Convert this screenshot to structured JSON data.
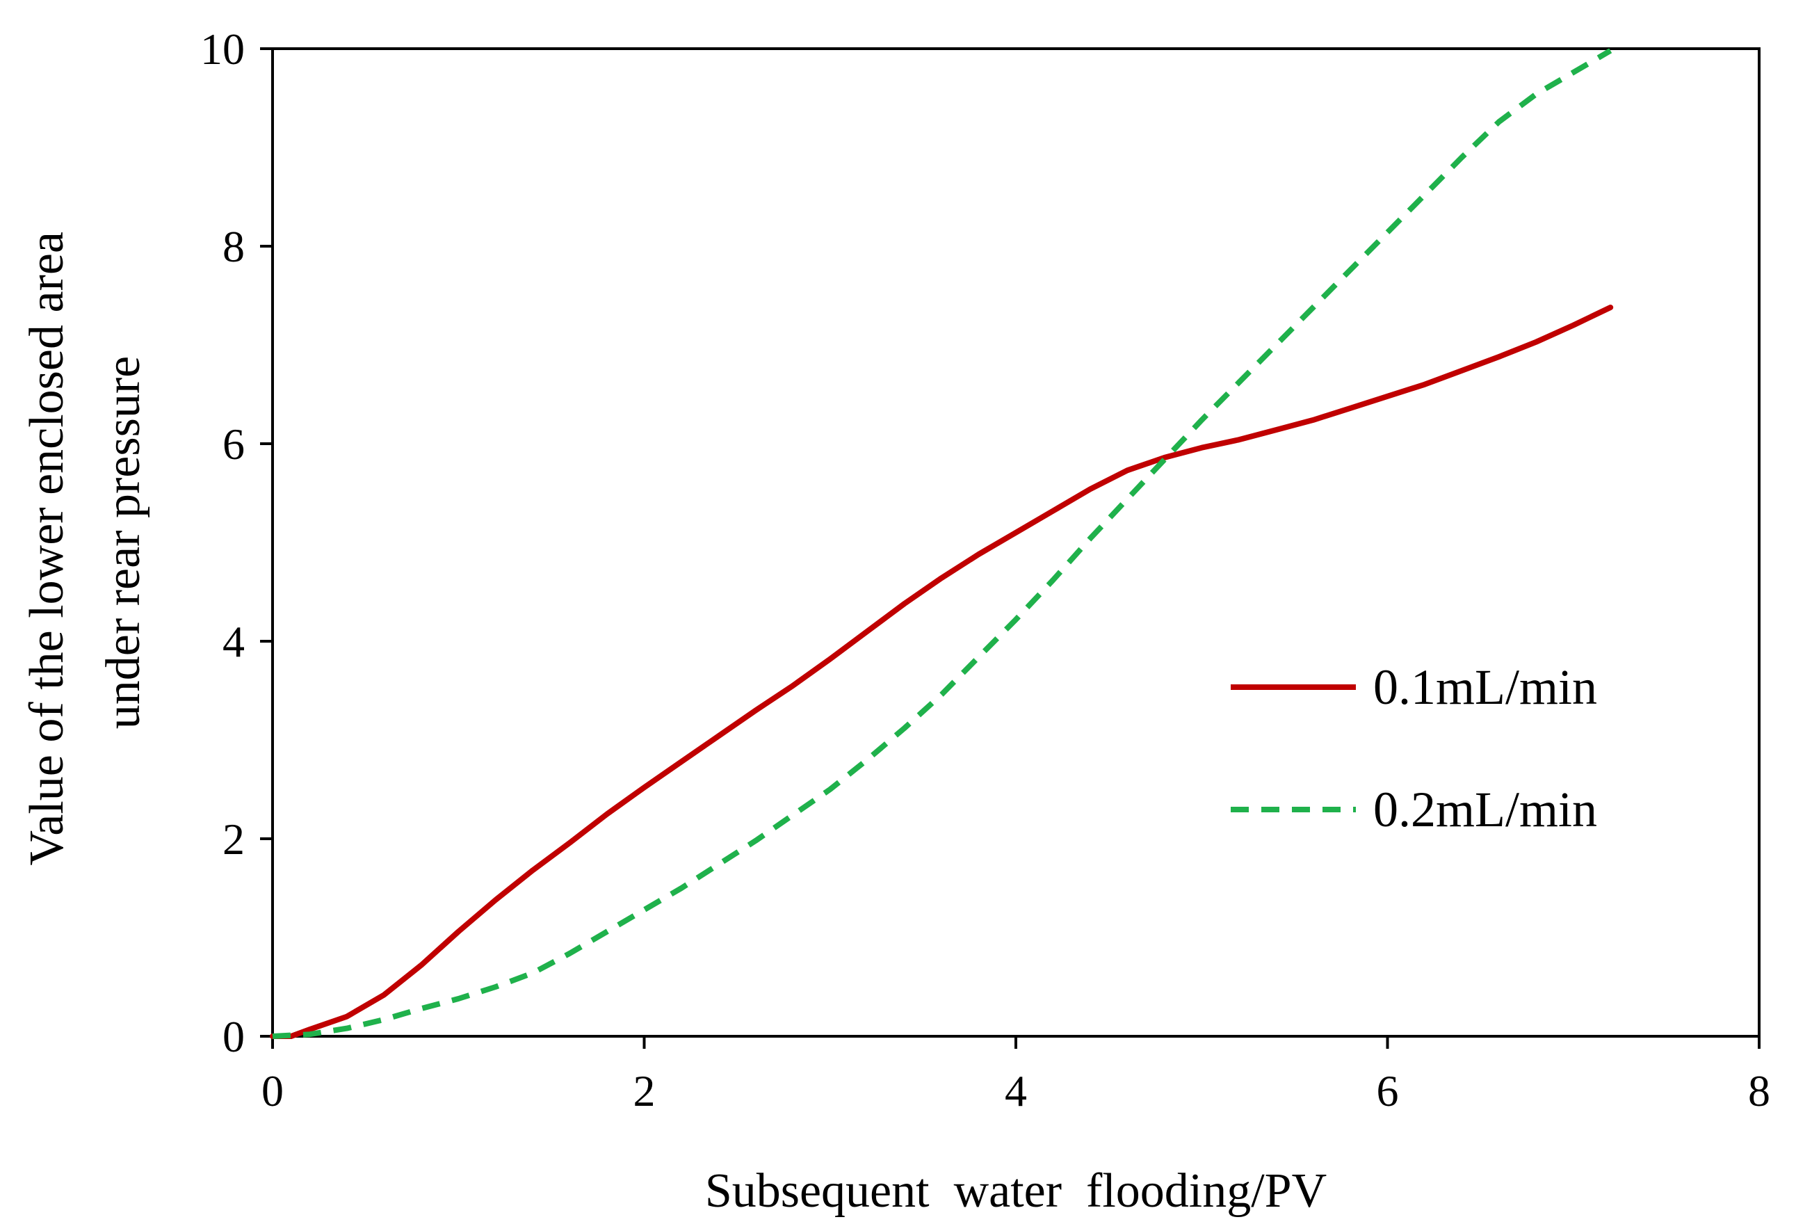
{
  "chart_data": {
    "type": "line",
    "title": "",
    "xlabel": "Subsequent  water  flooding/PV",
    "ylabel_lines": [
      "Value of the lower enclosed area",
      "under rear pressure"
    ],
    "xlim": [
      0,
      8
    ],
    "ylim": [
      0,
      10
    ],
    "x_ticks": [
      0,
      2,
      4,
      6,
      8
    ],
    "y_ticks": [
      0,
      2,
      4,
      6,
      8,
      10
    ],
    "x_tick_labels": [
      "0",
      "2",
      "4",
      "6",
      "8"
    ],
    "y_tick_labels": [
      "0",
      "2",
      "4",
      "6",
      "8",
      "10"
    ],
    "grid": false,
    "legend_position": "right-middle",
    "series": [
      {
        "name": "0.1mL/min",
        "color": "#c00000",
        "style": "solid",
        "x": [
          0.0,
          0.1,
          0.2,
          0.4,
          0.6,
          0.8,
          1.0,
          1.2,
          1.4,
          1.6,
          1.8,
          2.0,
          2.2,
          2.4,
          2.6,
          2.8,
          3.0,
          3.2,
          3.4,
          3.6,
          3.8,
          4.0,
          4.2,
          4.4,
          4.6,
          4.8,
          5.0,
          5.2,
          5.4,
          5.6,
          5.8,
          6.0,
          6.2,
          6.4,
          6.6,
          6.8,
          7.0,
          7.2
        ],
        "y": [
          0.0,
          0.0,
          0.07,
          0.2,
          0.42,
          0.72,
          1.06,
          1.38,
          1.68,
          1.96,
          2.25,
          2.52,
          2.78,
          3.04,
          3.3,
          3.55,
          3.82,
          4.1,
          4.38,
          4.64,
          4.88,
          5.1,
          5.32,
          5.54,
          5.73,
          5.86,
          5.96,
          6.04,
          6.14,
          6.24,
          6.36,
          6.48,
          6.6,
          6.74,
          6.88,
          7.03,
          7.2,
          7.38
        ]
      },
      {
        "name": "0.2mL/min",
        "color": "#1fb14b",
        "style": "dashed",
        "x": [
          0.0,
          0.2,
          0.4,
          0.6,
          0.8,
          1.0,
          1.2,
          1.4,
          1.6,
          1.8,
          2.0,
          2.2,
          2.4,
          2.6,
          2.8,
          3.0,
          3.2,
          3.4,
          3.6,
          3.8,
          4.0,
          4.2,
          4.4,
          4.6,
          4.8,
          5.0,
          5.2,
          5.4,
          5.6,
          5.8,
          6.0,
          6.2,
          6.4,
          6.6,
          6.8,
          7.0,
          7.2
        ],
        "y": [
          0.0,
          0.02,
          0.08,
          0.17,
          0.28,
          0.38,
          0.5,
          0.64,
          0.84,
          1.06,
          1.28,
          1.5,
          1.74,
          1.98,
          2.24,
          2.5,
          2.8,
          3.12,
          3.46,
          3.84,
          4.22,
          4.62,
          5.04,
          5.44,
          5.84,
          6.24,
          6.62,
          7.0,
          7.38,
          7.76,
          8.14,
          8.52,
          8.9,
          9.26,
          9.54,
          9.76,
          9.98
        ]
      }
    ]
  }
}
